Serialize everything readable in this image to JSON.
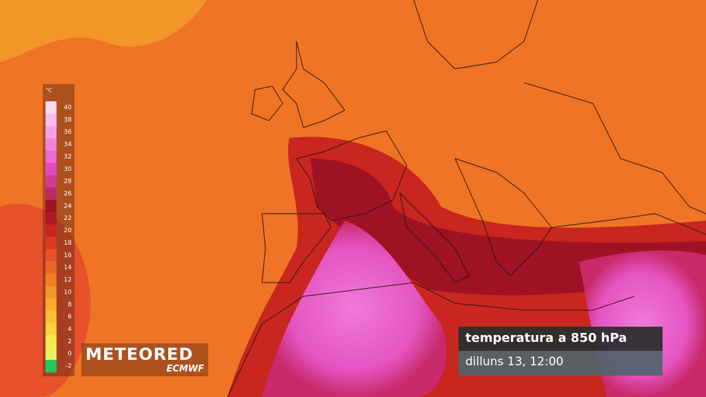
{
  "legend": {
    "unit": "°C",
    "items": [
      {
        "value": 40,
        "color": "#fcd9f1"
      },
      {
        "value": 38,
        "color": "#f9bdea"
      },
      {
        "value": 36,
        "color": "#f6a0e4"
      },
      {
        "value": 34,
        "color": "#f283dd"
      },
      {
        "value": 32,
        "color": "#ed66d5"
      },
      {
        "value": 30,
        "color": "#e04bc4"
      },
      {
        "value": 28,
        "color": "#d23a9a"
      },
      {
        "value": 26,
        "color": "#bd2a66"
      },
      {
        "value": 24,
        "color": "#9e1224"
      },
      {
        "value": 22,
        "color": "#b01a22"
      },
      {
        "value": 20,
        "color": "#c8261e"
      },
      {
        "value": 18,
        "color": "#da3820"
      },
      {
        "value": 16,
        "color": "#e6502a"
      },
      {
        "value": 14,
        "color": "#ec6829"
      },
      {
        "value": 12,
        "color": "#f07f25"
      },
      {
        "value": 10,
        "color": "#f3962a"
      },
      {
        "value": 8,
        "color": "#f6ab2e"
      },
      {
        "value": 6,
        "color": "#f8c036"
      },
      {
        "value": 4,
        "color": "#fad43f"
      },
      {
        "value": 2,
        "color": "#f6e84e"
      },
      {
        "value": 0,
        "color": "#e9ef5e"
      },
      {
        "value": -2,
        "color": "#22c85a"
      }
    ]
  },
  "logo": {
    "brand": "METEORED",
    "source": "ECMWF"
  },
  "info": {
    "title": "temperatura a 850 hPa",
    "time": "dilluns 13, 12:00"
  }
}
